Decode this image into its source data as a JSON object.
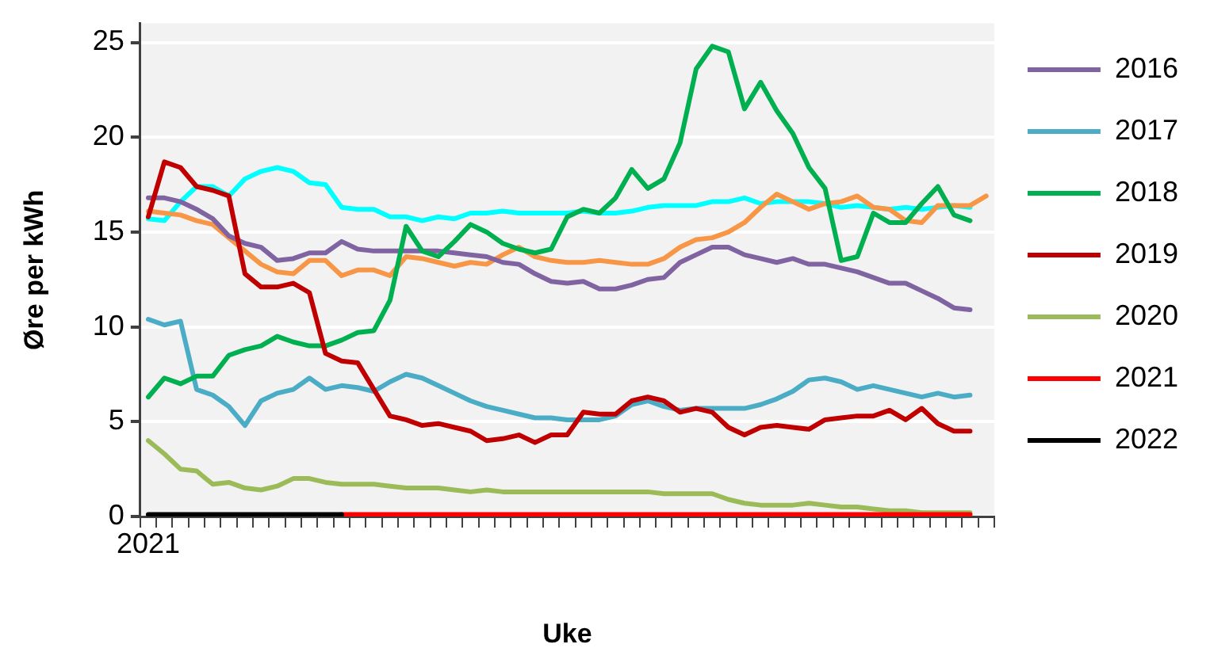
{
  "chart_data": {
    "type": "line",
    "xlabel": "Uke",
    "ylabel": "Øre per kWh",
    "ylim": [
      0,
      26
    ],
    "yticks": [
      0,
      5,
      10,
      15,
      20,
      25
    ],
    "grid": "y",
    "legend": "right",
    "marker": "none",
    "line_style": "solid",
    "categories": [
      "2021",
      null,
      null,
      null,
      null,
      null,
      null,
      null,
      null,
      null,
      null,
      null,
      null,
      null,
      null,
      null,
      null,
      null,
      null,
      null,
      null,
      null,
      null,
      null,
      null,
      null,
      null,
      null,
      null,
      null,
      null,
      null,
      null,
      null,
      null,
      null,
      null,
      null,
      null,
      null,
      null,
      null,
      null,
      null,
      null,
      null,
      null,
      null,
      null,
      null,
      null,
      null,
      null
    ],
    "series": [
      {
        "color": "#00ffff",
        "values": [
          15.7,
          15.6,
          16.6,
          17.4,
          17.4,
          16.9,
          17.8,
          18.2,
          18.4,
          18.2,
          17.6,
          17.5,
          16.3,
          16.2,
          16.2,
          15.8,
          15.8,
          15.6,
          15.8,
          15.7,
          16.0,
          16.0,
          16.1,
          16.0,
          16.0,
          16.0,
          16.0,
          16.1,
          16.0,
          16.0,
          16.1,
          16.3,
          16.4,
          16.4,
          16.4,
          16.6,
          16.6,
          16.8,
          16.5,
          16.6,
          16.6,
          16.6,
          16.5,
          16.3,
          16.4,
          16.3,
          16.2,
          16.3,
          16.2,
          16.3,
          16.4,
          16.3,
          null
        ]
      },
      {
        "color": "#f79646",
        "values": [
          16.1,
          16.0,
          15.9,
          15.6,
          15.4,
          14.7,
          14.0,
          13.3,
          12.9,
          12.8,
          13.5,
          13.5,
          12.7,
          13.0,
          13.0,
          12.7,
          13.7,
          13.6,
          13.4,
          13.2,
          13.4,
          13.3,
          13.8,
          14.2,
          13.7,
          13.5,
          13.4,
          13.4,
          13.5,
          13.4,
          13.3,
          13.3,
          13.6,
          14.2,
          14.6,
          14.7,
          15.0,
          15.5,
          16.3,
          17.0,
          16.6,
          16.2,
          16.5,
          16.6,
          16.9,
          16.3,
          16.2,
          15.6,
          15.5,
          16.4,
          16.4,
          16.4,
          16.9
        ]
      },
      {
        "name": "2016",
        "color": "#8064a2",
        "values": [
          16.8,
          16.8,
          16.6,
          16.2,
          15.7,
          14.8,
          14.4,
          14.2,
          13.5,
          13.6,
          13.9,
          13.9,
          14.5,
          14.1,
          14.0,
          14.0,
          14.0,
          14.0,
          14.0,
          13.9,
          13.8,
          13.7,
          13.4,
          13.3,
          12.8,
          12.4,
          12.3,
          12.4,
          12.0,
          12.0,
          12.2,
          12.5,
          12.6,
          13.4,
          13.8,
          14.2,
          14.2,
          13.8,
          13.6,
          13.4,
          13.6,
          13.3,
          13.3,
          13.1,
          12.9,
          12.6,
          12.3,
          12.3,
          11.9,
          11.5,
          11.0,
          10.9,
          null
        ]
      },
      {
        "name": "2017",
        "color": "#4bacc6",
        "values": [
          10.4,
          10.1,
          10.3,
          6.7,
          6.4,
          5.8,
          4.8,
          6.1,
          6.5,
          6.7,
          7.3,
          6.7,
          6.9,
          6.8,
          6.6,
          7.1,
          7.5,
          7.3,
          6.9,
          6.5,
          6.1,
          5.8,
          5.6,
          5.4,
          5.2,
          5.2,
          5.1,
          5.1,
          5.1,
          5.3,
          5.9,
          6.1,
          5.8,
          5.6,
          5.7,
          5.7,
          5.7,
          5.7,
          5.9,
          6.2,
          6.6,
          7.2,
          7.3,
          7.1,
          6.7,
          6.9,
          6.7,
          6.5,
          6.3,
          6.5,
          6.3,
          6.4,
          null
        ]
      },
      {
        "name": "2018",
        "color": "#00b050",
        "values": [
          6.3,
          7.3,
          7.0,
          7.4,
          7.4,
          8.5,
          8.8,
          9.0,
          9.5,
          9.2,
          9.0,
          9.0,
          9.3,
          9.7,
          9.8,
          11.4,
          15.3,
          14.0,
          13.7,
          14.5,
          15.4,
          15.0,
          14.4,
          14.1,
          13.9,
          14.1,
          15.8,
          16.2,
          16.0,
          16.8,
          18.3,
          17.3,
          17.8,
          19.7,
          23.6,
          24.8,
          24.5,
          21.5,
          22.9,
          21.4,
          20.2,
          18.4,
          17.3,
          13.5,
          13.7,
          16.0,
          15.5,
          15.5,
          16.5,
          17.4,
          15.9,
          15.6,
          null
        ]
      },
      {
        "name": "2019",
        "color": "#c00000",
        "values": [
          15.8,
          18.7,
          18.4,
          17.4,
          17.2,
          16.9,
          12.8,
          12.1,
          12.1,
          12.3,
          11.8,
          8.6,
          8.2,
          8.1,
          6.7,
          5.3,
          5.1,
          4.8,
          4.9,
          4.7,
          4.5,
          4.0,
          4.1,
          4.3,
          3.9,
          4.3,
          4.3,
          5.5,
          5.4,
          5.4,
          6.1,
          6.3,
          6.1,
          5.5,
          5.7,
          5.5,
          4.7,
          4.3,
          4.7,
          4.8,
          4.7,
          4.6,
          5.1,
          5.2,
          5.3,
          5.3,
          5.6,
          5.1,
          5.7,
          4.9,
          4.5,
          4.5,
          null
        ]
      },
      {
        "name": "2020",
        "color": "#9bbb59",
        "values": [
          4.0,
          3.3,
          2.5,
          2.4,
          1.7,
          1.8,
          1.5,
          1.4,
          1.6,
          2.0,
          2.0,
          1.8,
          1.7,
          1.7,
          1.7,
          1.6,
          1.5,
          1.5,
          1.5,
          1.4,
          1.3,
          1.4,
          1.3,
          1.3,
          1.3,
          1.3,
          1.3,
          1.3,
          1.3,
          1.3,
          1.3,
          1.3,
          1.2,
          1.2,
          1.2,
          1.2,
          0.9,
          0.7,
          0.6,
          0.6,
          0.6,
          0.7,
          0.6,
          0.5,
          0.5,
          0.4,
          0.3,
          0.3,
          0.2,
          0.2,
          0.2,
          0.2,
          null
        ]
      },
      {
        "name": "2021",
        "color": "#ff0000",
        "values": [
          null,
          null,
          null,
          null,
          null,
          null,
          null,
          null,
          null,
          null,
          null,
          null,
          0.1,
          0.1,
          0.1,
          0.1,
          0.1,
          0.1,
          0.1,
          0.1,
          0.1,
          0.1,
          0.1,
          0.1,
          0.1,
          0.1,
          0.1,
          0.1,
          0.1,
          0.1,
          0.1,
          0.1,
          0.1,
          0.1,
          0.1,
          0.1,
          0.1,
          0.1,
          0.1,
          0.1,
          0.1,
          0.1,
          0.1,
          0.1,
          0.1,
          0.1,
          0.1,
          0.1,
          0.1,
          0.1,
          0.1,
          0.1,
          null
        ]
      },
      {
        "name": "2022",
        "color": "#000000",
        "values": [
          0.1,
          0.1,
          0.1,
          0.1,
          0.1,
          0.1,
          0.1,
          0.1,
          0.1,
          0.1,
          0.1,
          0.1,
          0.1,
          null,
          null,
          null,
          null,
          null,
          null,
          null,
          null,
          null,
          null,
          null,
          null,
          null,
          null,
          null,
          null,
          null,
          null,
          null,
          null,
          null,
          null,
          null,
          null,
          null,
          null,
          null,
          null,
          null,
          null,
          null,
          null,
          null,
          null,
          null,
          null,
          null,
          null,
          null,
          null
        ]
      }
    ]
  }
}
